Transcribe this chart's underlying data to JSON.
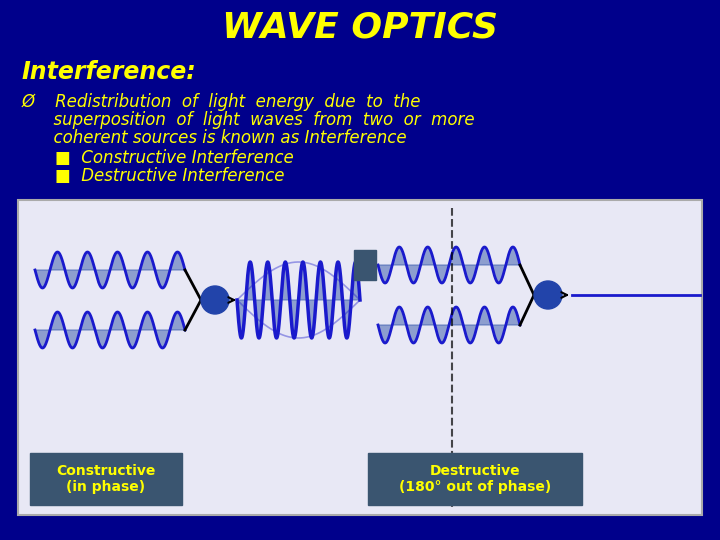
{
  "title": "WAVE OPTICS",
  "title_color": "#FFFF00",
  "title_fontsize": 26,
  "bg_color": "#00008B",
  "subtitle": "Interference:",
  "subtitle_color": "#FFFF00",
  "subtitle_fontsize": 17,
  "body_color": "#FFFF00",
  "body_fontsize": 12,
  "diagram_bg": "#E8E8F5",
  "diagram_border": "#AAAAAA",
  "wave_color": "#1a1aCC",
  "wave_fill": "#3355AA",
  "label_bg": "#3A5570",
  "label_text_color": "#FFFF00",
  "label1": "Constructive\n(in phase)",
  "label2": "Destructive\n(180° out of phase)",
  "circle_color": "#2244AA",
  "arrow_color": "#000000",
  "dashed_color": "#555555",
  "square_color": "#3A5570"
}
